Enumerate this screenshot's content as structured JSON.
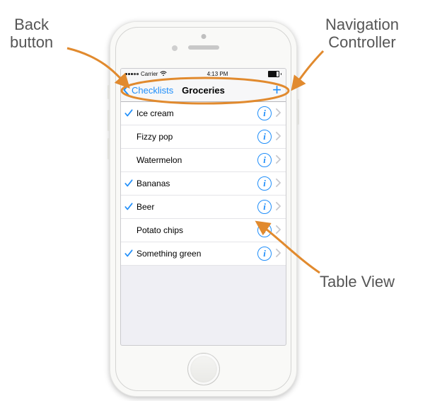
{
  "annotation_color": "#e18a2e",
  "annotation_text_color": "#555555",
  "annotation_fontsize": 22,
  "labels": {
    "back_button": "Back\nbutton",
    "nav_controller": "Navigation\nController",
    "table_view": "Table View"
  },
  "phone": {
    "frame_color": "#f9f9f7",
    "screen_bg": "#efeff4"
  },
  "status": {
    "carrier": "Carrier",
    "time": "4:13 PM",
    "wifi_icon": "wifi",
    "signal_filled": 3,
    "signal_total": 5,
    "battery_pct": 85
  },
  "nav": {
    "back_label": "Checklists",
    "title": "Groceries",
    "add_glyph": "+",
    "tint": "#1f8efa"
  },
  "ios_tint": "#1f8efa",
  "row_font_size": 12,
  "rows": [
    {
      "checked": true,
      "label": "Ice cream"
    },
    {
      "checked": false,
      "label": "Fizzy pop"
    },
    {
      "checked": false,
      "label": "Watermelon"
    },
    {
      "checked": true,
      "label": "Bananas"
    },
    {
      "checked": true,
      "label": "Beer"
    },
    {
      "checked": false,
      "label": "Potato chips"
    },
    {
      "checked": true,
      "label": "Something green"
    }
  ],
  "info_glyph": "i",
  "check_glyph": "✓",
  "disclosure_glyph": "›"
}
